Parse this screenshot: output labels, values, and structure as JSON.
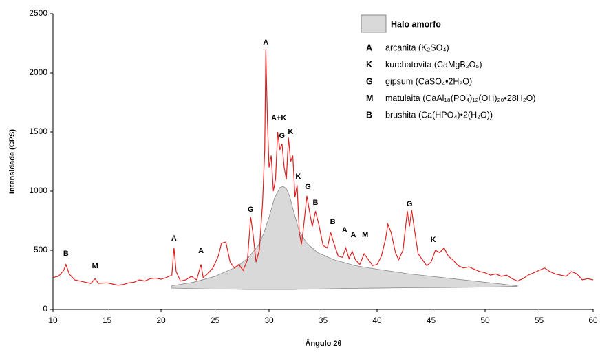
{
  "chart_data": {
    "type": "line",
    "x_label": "Ângulo 2θ",
    "y_label": "Intensidade (CPS)",
    "xlim": [
      10,
      60
    ],
    "xticks": [
      10,
      15,
      20,
      25,
      30,
      35,
      40,
      45,
      50,
      55,
      60
    ],
    "ylim": [
      0,
      2500
    ],
    "yticks": [
      0,
      500,
      1000,
      1500,
      2000,
      2500
    ],
    "grid": false,
    "series": [
      {
        "color": "#e02020",
        "x": [
          10,
          10.5,
          11,
          11.2,
          11.5,
          12,
          12.5,
          13,
          13.5,
          13.9,
          14.2,
          15,
          15.5,
          16,
          16.5,
          17,
          17.5,
          18,
          18.5,
          19,
          19.5,
          20,
          20.5,
          21,
          21.2,
          21.4,
          21.8,
          22.3,
          22.8,
          23.3,
          23.7,
          23.9,
          24.3,
          24.8,
          25.3,
          25.6,
          26,
          26.4,
          26.8,
          27.2,
          27.6,
          28,
          28.3,
          28.5,
          28.8,
          29.1,
          29.4,
          29.6,
          29.7,
          29.85,
          30,
          30.2,
          30.4,
          30.6,
          30.8,
          31,
          31.2,
          31.4,
          31.6,
          31.8,
          32,
          32.2,
          32.4,
          32.6,
          32.8,
          33,
          33.2,
          33.5,
          33.8,
          34,
          34.3,
          34.6,
          35,
          35.4,
          35.7,
          36,
          36.4,
          36.8,
          37.1,
          37.4,
          37.7,
          38,
          38.4,
          38.8,
          39.2,
          39.6,
          40,
          40.4,
          40.8,
          41,
          41.3,
          41.7,
          42,
          42.4,
          42.8,
          43,
          43.2,
          43.5,
          43.8,
          44.2,
          44.6,
          45,
          45.4,
          45.8,
          46.2,
          46.6,
          47,
          47.5,
          48,
          48.5,
          49,
          49.5,
          50,
          50.5,
          51,
          51.5,
          52,
          52.5,
          53,
          53.5,
          54,
          54.5,
          55,
          55.5,
          56,
          56.5,
          57,
          57.5,
          58,
          58.5,
          59,
          59.5,
          60
        ],
        "values": [
          270,
          280,
          330,
          380,
          300,
          250,
          240,
          230,
          220,
          260,
          220,
          225,
          215,
          205,
          210,
          225,
          230,
          250,
          240,
          260,
          265,
          255,
          270,
          290,
          520,
          320,
          240,
          250,
          280,
          250,
          380,
          270,
          300,
          350,
          450,
          560,
          570,
          400,
          350,
          380,
          330,
          420,
          780,
          650,
          400,
          500,
          900,
          1350,
          2200,
          1600,
          1200,
          1300,
          1000,
          1100,
          1500,
          1350,
          1400,
          1200,
          1100,
          1450,
          1250,
          1300,
          950,
          1050,
          650,
          550,
          700,
          960,
          800,
          700,
          830,
          720,
          540,
          520,
          650,
          560,
          450,
          440,
          520,
          430,
          490,
          420,
          380,
          470,
          420,
          370,
          380,
          450,
          600,
          720,
          650,
          480,
          420,
          500,
          830,
          700,
          840,
          650,
          470,
          420,
          370,
          400,
          500,
          480,
          520,
          450,
          420,
          370,
          350,
          360,
          340,
          320,
          310,
          290,
          300,
          280,
          290,
          260,
          240,
          260,
          290,
          310,
          330,
          350,
          320,
          300,
          290,
          280,
          320,
          300,
          250,
          260,
          250
        ]
      }
    ],
    "halo": {
      "name": "Halo amorfo",
      "color": "#d9d9d9",
      "x": [
        21,
        23,
        25,
        27,
        28,
        29,
        29.5,
        30,
        30.5,
        31,
        31.3,
        31.6,
        31.9,
        32.3,
        32.8,
        33.5,
        34.5,
        36,
        38,
        40,
        43,
        46,
        49,
        51,
        53
      ],
      "upper": [
        200,
        230,
        280,
        360,
        430,
        540,
        640,
        780,
        940,
        1030,
        1040,
        1020,
        960,
        820,
        660,
        560,
        480,
        420,
        370,
        340,
        300,
        270,
        240,
        220,
        200
      ],
      "lower": [
        180,
        175,
        172,
        170,
        168,
        168,
        168,
        168,
        168,
        168,
        168,
        168,
        168,
        168,
        170,
        170,
        172,
        175,
        178,
        180,
        183,
        185,
        188,
        190,
        195
      ]
    },
    "annotations": [
      {
        "label": "B",
        "x": 11.2,
        "y": 471
      },
      {
        "label": "M",
        "x": 13.9,
        "y": 366
      },
      {
        "label": "A",
        "x": 21.2,
        "y": 599
      },
      {
        "label": "A",
        "x": 23.7,
        "y": 494
      },
      {
        "label": "G",
        "x": 28.3,
        "y": 843
      },
      {
        "label": "A",
        "x": 29.7,
        "y": 2256
      },
      {
        "label": "A+K",
        "x": 30.9,
        "y": 1616
      },
      {
        "label": "G",
        "x": 31.2,
        "y": 1465
      },
      {
        "label": "K",
        "x": 32.0,
        "y": 1500
      },
      {
        "label": "K",
        "x": 32.7,
        "y": 1122
      },
      {
        "label": "G",
        "x": 33.6,
        "y": 1035
      },
      {
        "label": "B",
        "x": 34.3,
        "y": 901
      },
      {
        "label": "B",
        "x": 35.9,
        "y": 738
      },
      {
        "label": "A",
        "x": 37.0,
        "y": 669
      },
      {
        "label": "A",
        "x": 37.8,
        "y": 628
      },
      {
        "label": "M",
        "x": 38.9,
        "y": 628
      },
      {
        "label": "G",
        "x": 43.0,
        "y": 890
      },
      {
        "label": "K",
        "x": 45.2,
        "y": 587
      }
    ],
    "legend_items": [
      {
        "key": "A",
        "text": "arcanita (K₂SO₄)"
      },
      {
        "key": "K",
        "text": "kurchatovita (CaMgB₂O₅)"
      },
      {
        "key": "G",
        "text": "gipsum (CaSO₄•2H₂O)"
      },
      {
        "key": "M",
        "text": "matulaita (CaAl₁₈(PO₄)₁₂(OH)₂₀•28H₂O)"
      },
      {
        "key": "B",
        "text": "brushita (Ca(HPO₄)•2(H₂O))"
      }
    ]
  }
}
